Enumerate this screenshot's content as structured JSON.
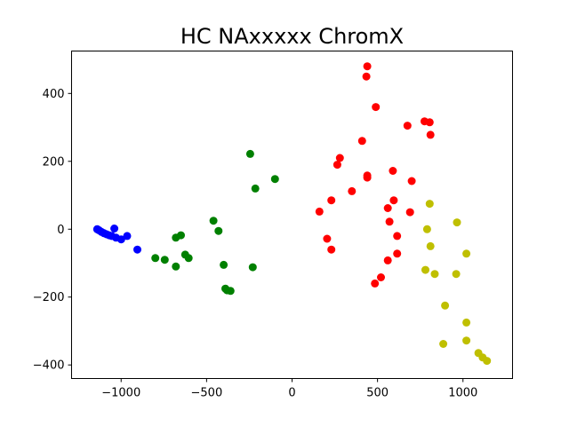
{
  "chart_data": {
    "type": "scatter",
    "title": "HC NAxxxxx ChromX",
    "xlabel": "",
    "ylabel": "",
    "xlim": [
      -1290,
      1290
    ],
    "ylim": [
      -440,
      525
    ],
    "xticks": [
      -1000,
      -500,
      0,
      500,
      1000
    ],
    "xtick_labels": [
      "−1000",
      "−500",
      "0",
      "500",
      "1000"
    ],
    "yticks": [
      -400,
      -200,
      0,
      200,
      400
    ],
    "ytick_labels": [
      "−400",
      "−200",
      "0",
      "200",
      "400"
    ],
    "grid": false,
    "legend": "none",
    "series": [
      {
        "color": "#0000ff",
        "points": [
          [
            -1140,
            0
          ],
          [
            -1130,
            -3
          ],
          [
            -1115,
            -8
          ],
          [
            -1100,
            -12
          ],
          [
            -1085,
            -15
          ],
          [
            -1070,
            -18
          ],
          [
            -1055,
            -20
          ],
          [
            -1040,
            2
          ],
          [
            -1030,
            -25
          ],
          [
            -1000,
            -30
          ],
          [
            -965,
            -20
          ],
          [
            -905,
            -60
          ]
        ]
      },
      {
        "color": "#008000",
        "points": [
          [
            -800,
            -85
          ],
          [
            -745,
            -90
          ],
          [
            -680,
            -25
          ],
          [
            -650,
            -18
          ],
          [
            -625,
            -75
          ],
          [
            -605,
            -85
          ],
          [
            -680,
            -110
          ],
          [
            -460,
            25
          ],
          [
            -430,
            -5
          ],
          [
            -400,
            -105
          ],
          [
            -390,
            -175
          ],
          [
            -380,
            -180
          ],
          [
            -360,
            -182
          ],
          [
            -245,
            222
          ],
          [
            -215,
            120
          ],
          [
            -230,
            -112
          ],
          [
            -100,
            148
          ]
        ]
      },
      {
        "color": "#ff0000",
        "points": [
          [
            440,
            480
          ],
          [
            435,
            450
          ],
          [
            490,
            360
          ],
          [
            410,
            260
          ],
          [
            280,
            210
          ],
          [
            265,
            190
          ],
          [
            440,
            158
          ],
          [
            440,
            152
          ],
          [
            350,
            112
          ],
          [
            230,
            85
          ],
          [
            160,
            52
          ],
          [
            205,
            -28
          ],
          [
            230,
            -60
          ],
          [
            590,
            172
          ],
          [
            700,
            142
          ],
          [
            595,
            85
          ],
          [
            560,
            62
          ],
          [
            690,
            50
          ],
          [
            570,
            22
          ],
          [
            615,
            -20
          ],
          [
            615,
            -72
          ],
          [
            560,
            -92
          ],
          [
            520,
            -142
          ],
          [
            485,
            -160
          ],
          [
            675,
            305
          ],
          [
            775,
            318
          ],
          [
            805,
            315
          ],
          [
            810,
            278
          ]
        ]
      },
      {
        "color": "#bfbf00",
        "points": [
          [
            805,
            75
          ],
          [
            790,
            0
          ],
          [
            965,
            20
          ],
          [
            810,
            -50
          ],
          [
            1020,
            -72
          ],
          [
            780,
            -120
          ],
          [
            835,
            -132
          ],
          [
            960,
            -132
          ],
          [
            895,
            -225
          ],
          [
            1020,
            -275
          ],
          [
            1020,
            -328
          ],
          [
            885,
            -338
          ],
          [
            1090,
            -365
          ],
          [
            1115,
            -378
          ],
          [
            1140,
            -388
          ]
        ]
      }
    ]
  }
}
